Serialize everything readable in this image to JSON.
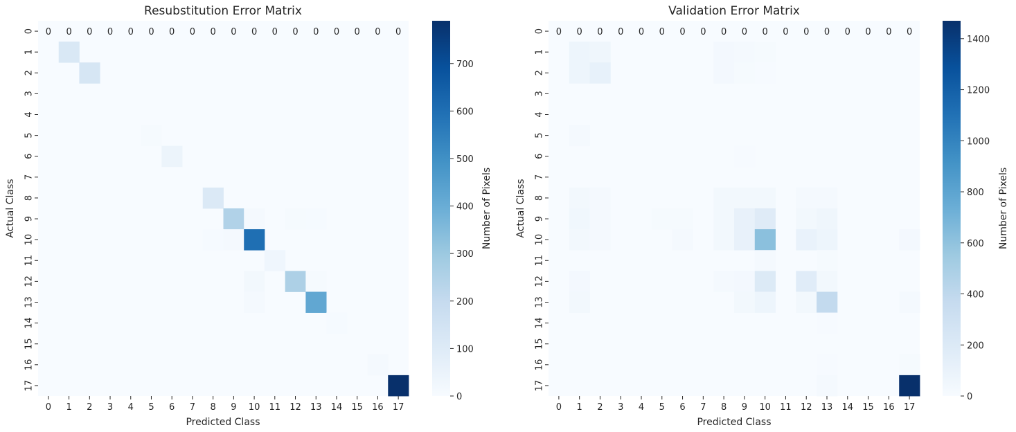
{
  "chart_data": [
    {
      "type": "heatmap",
      "title": "Resubstitution Error Matrix",
      "xlabel": "Predicted Class",
      "ylabel": "Actual Class",
      "colorbar_label": "Number of Pixels",
      "colormap": "Blues",
      "vmin": 0,
      "vmax": 790,
      "colorbar_ticks": [
        0,
        100,
        200,
        300,
        400,
        500,
        600,
        700
      ],
      "x_ticks": [
        "0",
        "1",
        "2",
        "3",
        "4",
        "5",
        "6",
        "7",
        "8",
        "9",
        "10",
        "11",
        "12",
        "13",
        "14",
        "15",
        "16",
        "17"
      ],
      "y_ticks": [
        "0",
        "1",
        "2",
        "3",
        "4",
        "5",
        "6",
        "7",
        "8",
        "9",
        "10",
        "11",
        "12",
        "13",
        "14",
        "15",
        "16",
        "17"
      ],
      "annotated_row": 0,
      "annotation_values": [
        "0",
        "0",
        "0",
        "0",
        "0",
        "0",
        "0",
        "0",
        "0",
        "0",
        "0",
        "0",
        "0",
        "0",
        "0",
        "0",
        "0",
        "0"
      ],
      "cells": [
        [
          1,
          1,
          120
        ],
        [
          2,
          2,
          130
        ],
        [
          5,
          5,
          8
        ],
        [
          6,
          6,
          45
        ],
        [
          8,
          8,
          110
        ],
        [
          9,
          9,
          250
        ],
        [
          9,
          10,
          10
        ],
        [
          9,
          12,
          8
        ],
        [
          9,
          13,
          6
        ],
        [
          10,
          8,
          6
        ],
        [
          10,
          9,
          10
        ],
        [
          10,
          10,
          600
        ],
        [
          11,
          11,
          30
        ],
        [
          12,
          10,
          20
        ],
        [
          12,
          12,
          260
        ],
        [
          12,
          13,
          8
        ],
        [
          13,
          10,
          12
        ],
        [
          13,
          13,
          420
        ],
        [
          14,
          14,
          6
        ],
        [
          16,
          16,
          10
        ],
        [
          17,
          17,
          790
        ]
      ]
    },
    {
      "type": "heatmap",
      "title": "Validation Error Matrix",
      "xlabel": "Predicted Class",
      "ylabel": "Actual Class",
      "colorbar_label": "Number of Pixels",
      "colormap": "Blues",
      "vmin": 0,
      "vmax": 1470,
      "colorbar_ticks": [
        0,
        200,
        400,
        600,
        800,
        1000,
        1200,
        1400
      ],
      "x_ticks": [
        "0",
        "1",
        "2",
        "3",
        "4",
        "5",
        "6",
        "7",
        "8",
        "9",
        "10",
        "11",
        "12",
        "13",
        "14",
        "15",
        "16",
        "17"
      ],
      "y_ticks": [
        "0",
        "1",
        "2",
        "3",
        "4",
        "5",
        "6",
        "7",
        "8",
        "9",
        "10",
        "11",
        "12",
        "13",
        "14",
        "15",
        "16",
        "17"
      ],
      "annotated_row": 0,
      "annotation_values": [
        "0",
        "0",
        "0",
        "0",
        "0",
        "0",
        "0",
        "0",
        "0",
        "0",
        "0",
        "0",
        "0",
        "0",
        "0",
        "0",
        "0",
        "0"
      ],
      "cells": [
        [
          1,
          1,
          70
        ],
        [
          1,
          2,
          60
        ],
        [
          1,
          8,
          30
        ],
        [
          1,
          9,
          20
        ],
        [
          1,
          10,
          15
        ],
        [
          2,
          1,
          70
        ],
        [
          2,
          2,
          120
        ],
        [
          2,
          8,
          30
        ],
        [
          2,
          9,
          15
        ],
        [
          2,
          10,
          10
        ],
        [
          5,
          1,
          25
        ],
        [
          6,
          9,
          10
        ],
        [
          8,
          1,
          40
        ],
        [
          8,
          2,
          20
        ],
        [
          8,
          8,
          40
        ],
        [
          8,
          9,
          40
        ],
        [
          8,
          10,
          40
        ],
        [
          8,
          12,
          20
        ],
        [
          8,
          13,
          20
        ],
        [
          9,
          1,
          50
        ],
        [
          9,
          2,
          20
        ],
        [
          9,
          5,
          15
        ],
        [
          9,
          6,
          15
        ],
        [
          9,
          8,
          40
        ],
        [
          9,
          9,
          110
        ],
        [
          9,
          10,
          180
        ],
        [
          9,
          12,
          40
        ],
        [
          9,
          13,
          60
        ],
        [
          10,
          1,
          40
        ],
        [
          10,
          2,
          20
        ],
        [
          10,
          6,
          25
        ],
        [
          10,
          8,
          40
        ],
        [
          10,
          9,
          110
        ],
        [
          10,
          10,
          620
        ],
        [
          10,
          12,
          100
        ],
        [
          10,
          13,
          70
        ],
        [
          10,
          17,
          30
        ],
        [
          11,
          10,
          20
        ],
        [
          11,
          13,
          15
        ],
        [
          12,
          1,
          30
        ],
        [
          12,
          8,
          20
        ],
        [
          12,
          9,
          30
        ],
        [
          12,
          10,
          200
        ],
        [
          12,
          12,
          170
        ],
        [
          12,
          13,
          40
        ],
        [
          13,
          1,
          35
        ],
        [
          13,
          9,
          40
        ],
        [
          13,
          10,
          70
        ],
        [
          13,
          12,
          40
        ],
        [
          13,
          13,
          380
        ],
        [
          13,
          17,
          20
        ],
        [
          14,
          13,
          10
        ],
        [
          16,
          13,
          10
        ],
        [
          16,
          17,
          15
        ],
        [
          17,
          13,
          20
        ],
        [
          17,
          17,
          1470
        ]
      ]
    }
  ]
}
